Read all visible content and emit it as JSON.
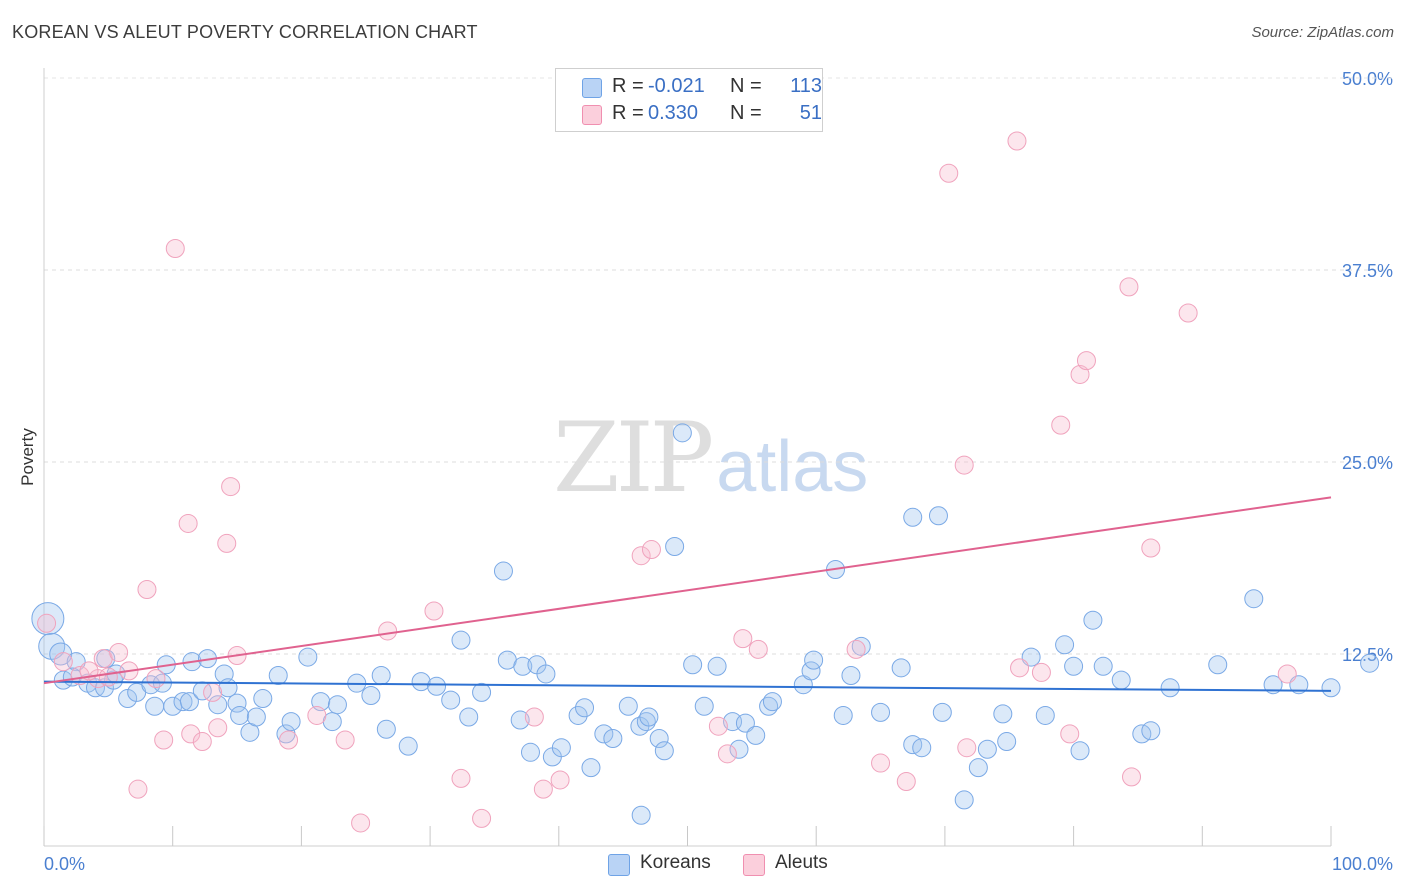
{
  "title": "KOREAN VS ALEUT POVERTY CORRELATION CHART",
  "source": "Source: ZipAtlas.com",
  "watermark": {
    "zip": "ZIP",
    "atlas": "atlas"
  },
  "legend": {
    "koreans": {
      "r_label": "R =",
      "r_value": "-0.021",
      "n_label": "N =",
      "n_value": "113",
      "color": "#7faee8"
    },
    "aleuts": {
      "r_label": "R =",
      "r_value": "0.330",
      "n_label": "N =",
      "n_value": "51",
      "color": "#f0a3bd"
    }
  },
  "bottom_legend": {
    "koreans": "Koreans",
    "aleuts": "Aleuts"
  },
  "chart_data": {
    "type": "scatter",
    "title": "KOREAN VS ALEUT POVERTY CORRELATION CHART",
    "xlabel": "",
    "ylabel": "Poverty",
    "xlim": [
      0,
      100
    ],
    "ylim": [
      0,
      50
    ],
    "x_tick_labels": [
      "0.0%",
      "100.0%"
    ],
    "y_tick_labels": [
      "12.5%",
      "25.0%",
      "37.5%",
      "50.0%"
    ],
    "y_ticks": [
      12.5,
      25.0,
      37.5,
      50.0
    ],
    "grid": true,
    "legend_position": "top-center",
    "series": [
      {
        "name": "Koreans",
        "color": "#6fa3e6",
        "trend": {
          "x": [
            0,
            100
          ],
          "y": [
            10.7,
            10.1
          ]
        },
        "points": [
          [
            0.3,
            14.8
          ],
          [
            0.6,
            13.0
          ],
          [
            1.3,
            12.5
          ],
          [
            2.5,
            12.0
          ],
          [
            1.5,
            10.8
          ],
          [
            2.2,
            11.0
          ],
          [
            3.4,
            10.6
          ],
          [
            4.0,
            10.3
          ],
          [
            4.7,
            10.3
          ],
          [
            5.4,
            10.8
          ],
          [
            4.8,
            12.2
          ],
          [
            5.6,
            11.2
          ],
          [
            6.5,
            9.6
          ],
          [
            7.2,
            10.0
          ],
          [
            8.3,
            10.5
          ],
          [
            9.2,
            10.6
          ],
          [
            8.6,
            9.1
          ],
          [
            10.0,
            9.1
          ],
          [
            10.8,
            9.4
          ],
          [
            9.5,
            11.8
          ],
          [
            11.5,
            12.0
          ],
          [
            12.7,
            12.2
          ],
          [
            11.3,
            9.4
          ],
          [
            12.3,
            10.1
          ],
          [
            13.5,
            9.2
          ],
          [
            14.0,
            11.2
          ],
          [
            14.3,
            10.3
          ],
          [
            15.0,
            9.3
          ],
          [
            15.2,
            8.5
          ],
          [
            16.0,
            7.4
          ],
          [
            16.5,
            8.4
          ],
          [
            17.0,
            9.6
          ],
          [
            18.2,
            11.1
          ],
          [
            18.8,
            7.3
          ],
          [
            19.2,
            8.1
          ],
          [
            20.5,
            12.3
          ],
          [
            21.5,
            9.4
          ],
          [
            22.4,
            8.1
          ],
          [
            22.8,
            9.2
          ],
          [
            24.3,
            10.6
          ],
          [
            25.4,
            9.8
          ],
          [
            26.2,
            11.1
          ],
          [
            26.6,
            7.6
          ],
          [
            28.3,
            6.5
          ],
          [
            29.3,
            10.7
          ],
          [
            30.5,
            10.4
          ],
          [
            31.6,
            9.5
          ],
          [
            33.0,
            8.4
          ],
          [
            32.4,
            13.4
          ],
          [
            34.0,
            10.0
          ],
          [
            35.7,
            17.9
          ],
          [
            36.0,
            12.1
          ],
          [
            37.2,
            11.7
          ],
          [
            38.3,
            11.8
          ],
          [
            39.0,
            11.2
          ],
          [
            37.0,
            8.2
          ],
          [
            37.8,
            6.1
          ],
          [
            39.5,
            5.8
          ],
          [
            40.2,
            6.4
          ],
          [
            41.5,
            8.5
          ],
          [
            42.0,
            9.0
          ],
          [
            42.5,
            5.1
          ],
          [
            43.5,
            7.3
          ],
          [
            44.2,
            7.0
          ],
          [
            45.4,
            9.1
          ],
          [
            46.3,
            7.8
          ],
          [
            46.8,
            8.1
          ],
          [
            47.0,
            8.4
          ],
          [
            47.8,
            7.0
          ],
          [
            46.4,
            2.0
          ],
          [
            48.2,
            6.2
          ],
          [
            50.4,
            11.8
          ],
          [
            49.0,
            19.5
          ],
          [
            49.6,
            26.9
          ],
          [
            52.3,
            11.7
          ],
          [
            51.3,
            9.1
          ],
          [
            53.5,
            8.1
          ],
          [
            54.5,
            8.0
          ],
          [
            55.3,
            7.2
          ],
          [
            54.0,
            6.3
          ],
          [
            56.3,
            9.1
          ],
          [
            56.6,
            9.4
          ],
          [
            59.0,
            10.5
          ],
          [
            59.6,
            11.4
          ],
          [
            59.8,
            12.1
          ],
          [
            61.5,
            18.0
          ],
          [
            62.1,
            8.5
          ],
          [
            63.5,
            13.0
          ],
          [
            62.7,
            11.1
          ],
          [
            65.0,
            8.7
          ],
          [
            66.6,
            11.6
          ],
          [
            67.5,
            21.4
          ],
          [
            67.5,
            6.6
          ],
          [
            68.2,
            6.4
          ],
          [
            69.5,
            21.5
          ],
          [
            69.8,
            8.7
          ],
          [
            71.5,
            3.0
          ],
          [
            72.6,
            5.1
          ],
          [
            73.3,
            6.3
          ],
          [
            74.5,
            8.6
          ],
          [
            74.8,
            6.8
          ],
          [
            76.7,
            12.3
          ],
          [
            77.8,
            8.5
          ],
          [
            79.3,
            13.1
          ],
          [
            80.0,
            11.7
          ],
          [
            80.5,
            6.2
          ],
          [
            81.5,
            14.7
          ],
          [
            82.3,
            11.7
          ],
          [
            83.7,
            10.8
          ],
          [
            85.3,
            7.3
          ],
          [
            86.0,
            7.5
          ],
          [
            87.5,
            10.3
          ],
          [
            91.2,
            11.8
          ],
          [
            94.0,
            16.1
          ],
          [
            95.5,
            10.5
          ],
          [
            97.5,
            10.5
          ],
          [
            100.0,
            10.3
          ],
          [
            103.0,
            11.9
          ]
        ]
      },
      {
        "name": "Aleuts",
        "color": "#f08fb0",
        "trend": {
          "x": [
            0,
            100
          ],
          "y": [
            10.6,
            22.7
          ]
        },
        "points": [
          [
            0.2,
            14.5
          ],
          [
            1.5,
            12.0
          ],
          [
            2.8,
            11.1
          ],
          [
            4.2,
            10.9
          ],
          [
            3.5,
            11.4
          ],
          [
            5.0,
            11.0
          ],
          [
            4.6,
            12.2
          ],
          [
            5.8,
            12.6
          ],
          [
            6.6,
            11.4
          ],
          [
            8.0,
            16.7
          ],
          [
            8.7,
            10.9
          ],
          [
            7.3,
            3.7
          ],
          [
            9.3,
            6.9
          ],
          [
            10.2,
            38.9
          ],
          [
            11.2,
            21.0
          ],
          [
            11.4,
            7.3
          ],
          [
            12.3,
            6.8
          ],
          [
            13.1,
            10.0
          ],
          [
            13.5,
            7.7
          ],
          [
            14.2,
            19.7
          ],
          [
            14.5,
            23.4
          ],
          [
            15.0,
            12.4
          ],
          [
            19.0,
            6.9
          ],
          [
            21.2,
            8.5
          ],
          [
            23.4,
            6.9
          ],
          [
            24.6,
            1.5
          ],
          [
            26.7,
            14.0
          ],
          [
            30.3,
            15.3
          ],
          [
            32.4,
            4.4
          ],
          [
            34.0,
            1.8
          ],
          [
            38.1,
            8.4
          ],
          [
            38.8,
            3.7
          ],
          [
            40.1,
            4.3
          ],
          [
            46.4,
            18.9
          ],
          [
            47.2,
            19.3
          ],
          [
            52.4,
            7.8
          ],
          [
            53.1,
            6.0
          ],
          [
            54.3,
            13.5
          ],
          [
            55.5,
            12.8
          ],
          [
            63.1,
            12.8
          ],
          [
            65.0,
            5.4
          ],
          [
            67.0,
            4.2
          ],
          [
            70.3,
            43.8
          ],
          [
            71.5,
            24.8
          ],
          [
            71.7,
            6.4
          ],
          [
            75.6,
            45.9
          ],
          [
            75.8,
            11.6
          ],
          [
            77.5,
            11.3
          ],
          [
            79.0,
            27.4
          ],
          [
            79.7,
            7.3
          ],
          [
            80.5,
            30.7
          ],
          [
            81.0,
            31.6
          ],
          [
            84.3,
            36.4
          ],
          [
            84.5,
            4.5
          ],
          [
            86.0,
            19.4
          ],
          [
            88.9,
            34.7
          ],
          [
            96.6,
            11.2
          ]
        ]
      }
    ]
  }
}
